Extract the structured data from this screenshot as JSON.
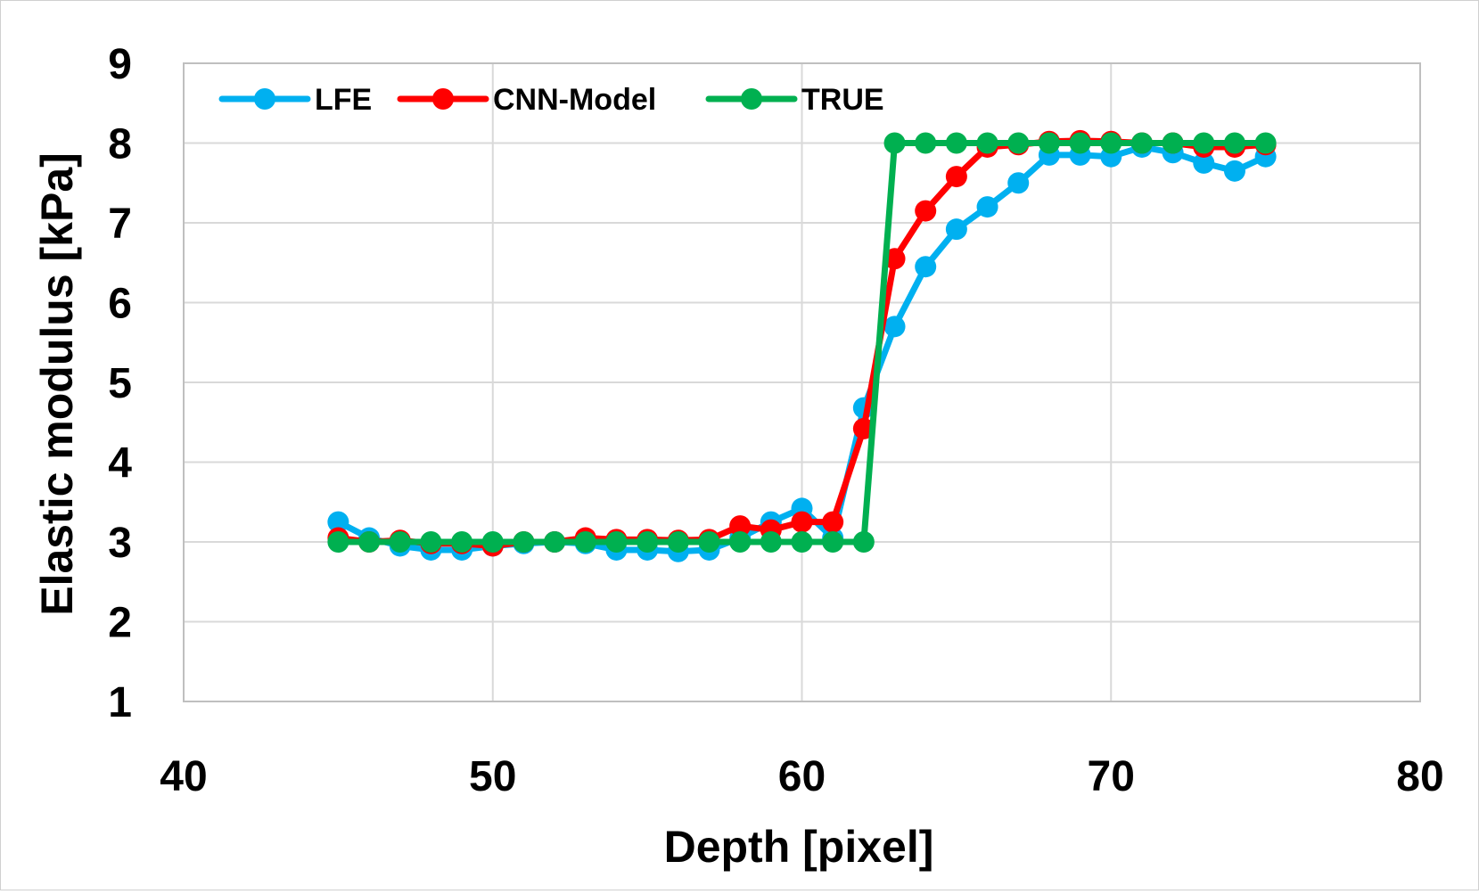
{
  "chart_data": {
    "type": "line",
    "title": "",
    "xlabel": "Depth [pixel]",
    "ylabel": "Elastic modulus [kPa]",
    "xlim": [
      40,
      80
    ],
    "ylim": [
      1,
      9
    ],
    "xticks": [
      40,
      50,
      60,
      70,
      80
    ],
    "yticks": [
      1,
      2,
      3,
      4,
      5,
      6,
      7,
      8,
      9
    ],
    "grid": true,
    "legend_position": "top-left",
    "x": [
      45,
      46,
      47,
      48,
      49,
      50,
      51,
      52,
      53,
      54,
      55,
      56,
      57,
      58,
      59,
      60,
      61,
      62,
      63,
      64,
      65,
      66,
      67,
      68,
      69,
      70,
      71,
      72,
      73,
      74,
      75
    ],
    "series": [
      {
        "name": "LFE",
        "color": "#00B0F0",
        "values": [
          3.25,
          3.05,
          2.95,
          2.9,
          2.9,
          2.95,
          2.98,
          3.0,
          2.98,
          2.9,
          2.9,
          2.88,
          2.9,
          3.05,
          3.25,
          3.42,
          3.05,
          4.68,
          5.7,
          6.45,
          6.92,
          7.2,
          7.5,
          7.85,
          7.85,
          7.83,
          7.95,
          7.88,
          7.75,
          7.65,
          7.83
        ]
      },
      {
        "name": "CNN-Model",
        "color": "#FF0000",
        "values": [
          3.05,
          3.0,
          3.02,
          2.98,
          2.98,
          2.95,
          3.0,
          3.0,
          3.05,
          3.03,
          3.03,
          3.02,
          3.03,
          3.2,
          3.15,
          3.25,
          3.25,
          4.42,
          6.55,
          7.15,
          7.58,
          7.95,
          7.98,
          8.02,
          8.03,
          8.02,
          8.0,
          8.0,
          7.95,
          7.95,
          7.98
        ]
      },
      {
        "name": "TRUE",
        "color": "#00B050",
        "values": [
          3,
          3,
          3,
          3,
          3,
          3,
          3,
          3,
          3,
          3,
          3,
          3,
          3,
          3,
          3,
          3,
          3,
          3,
          8,
          8,
          8,
          8,
          8,
          8,
          8,
          8,
          8,
          8,
          8,
          8,
          8
        ]
      }
    ]
  }
}
